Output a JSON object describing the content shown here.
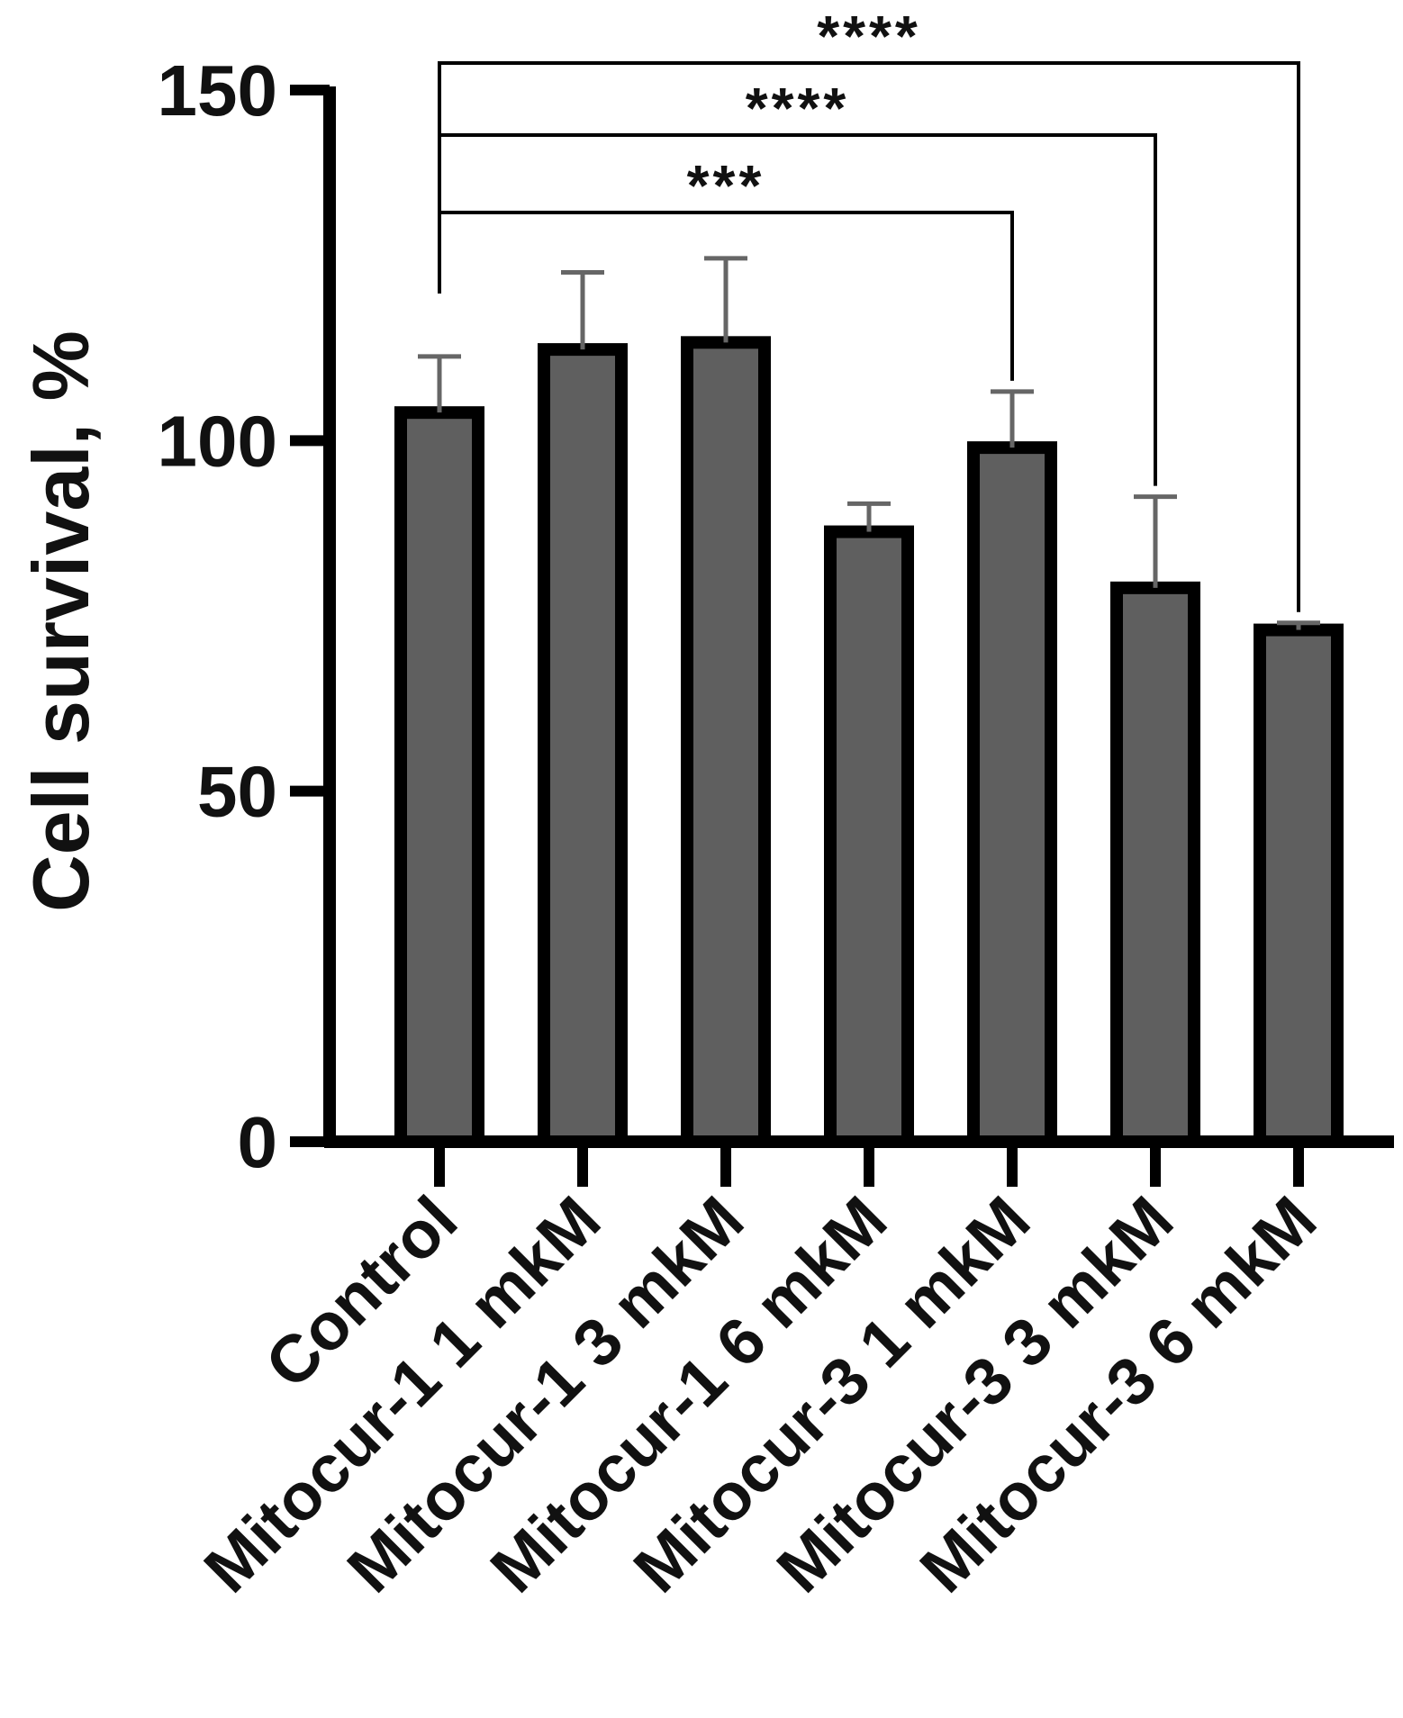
{
  "chart_data": {
    "type": "bar",
    "ylabel": "Cell survival, %",
    "xlabel": "",
    "ylim": [
      0,
      150
    ],
    "yticks": [
      0,
      50,
      100,
      150
    ],
    "categories": [
      "Control",
      "Mitocur-1 1 mkM",
      "Mitocur-1 3 mkM",
      "Mitocur-1 6 mkM",
      "Mitocur-3 1 mkM",
      "Mitocur-3 3 mkM",
      "Mitocur-3 6 mkM"
    ],
    "values": [
      104,
      113,
      114,
      87,
      99,
      79,
      73
    ],
    "error": [
      8,
      11,
      12,
      4,
      8,
      13,
      1
    ],
    "bar_fill": "#5f5f5f",
    "bar_stroke": "#000000",
    "error_color": "#666666",
    "grid": false,
    "significance": [
      {
        "from": 0,
        "to": 6,
        "label": "****"
      },
      {
        "from": 0,
        "to": 5,
        "label": "****"
      },
      {
        "from": 0,
        "to": 4,
        "label": "***"
      }
    ]
  }
}
